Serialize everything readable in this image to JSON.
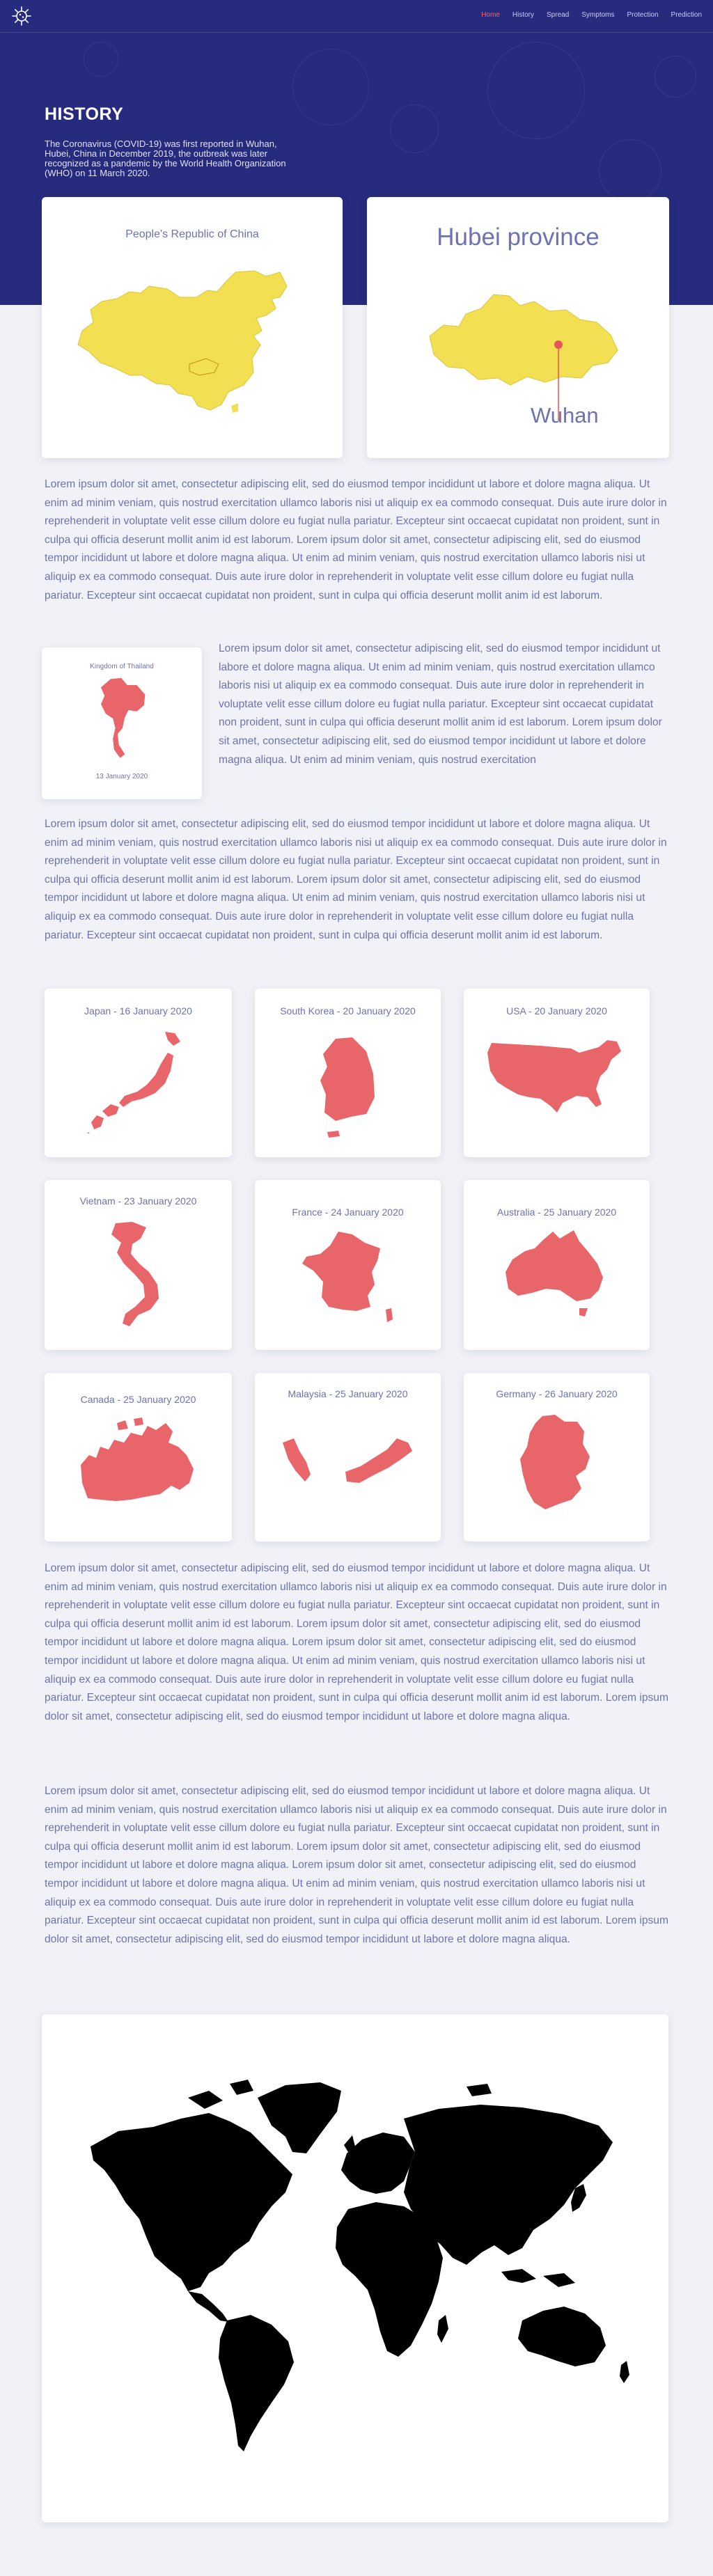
{
  "nav": {
    "logo_icon": "virus-icon",
    "items": [
      "Home",
      "History",
      "Spread",
      "Symptoms",
      "Protection",
      "Prediction"
    ],
    "active": "Home",
    "active_color": "#ff5d6c"
  },
  "hero": {
    "title": "HISTORY",
    "text": "The Coronavirus (COVID-19) was first reported in Wuhan, Hubei, China in December 2019, the outbreak was later recognized as a pandemic by the World Health Organization (WHO) on 11 March 2020.",
    "bg_color": "#262b7d"
  },
  "china_card": {
    "title": "People's Republic of China",
    "map_color": "#f2e052"
  },
  "hubei_card": {
    "title": "Hubei province",
    "city_label": "Wuhan",
    "marker_color": "#e8545a"
  },
  "thailand_card": {
    "title": "Kingdom of Thailand",
    "date": "13 January 2020",
    "map_color": "#e8656a"
  },
  "paragraphs": {
    "p1": "Lorem ipsum dolor sit amet, consectetur adipiscing elit, sed do eiusmod tempor incididunt ut labore et dolore magna aliqua. Ut enim ad minim veniam, quis nostrud exercitation ullamco laboris nisi ut aliquip ex ea commodo consequat. Duis aute irure dolor in reprehenderit in voluptate velit esse cillum dolore eu fugiat nulla pariatur. Excepteur sint occaecat cupidatat non proident, sunt in culpa qui officia deserunt mollit anim id est laborum. Lorem ipsum dolor sit amet, consectetur adipiscing elit, sed do eiusmod tempor incididunt ut labore et dolore magna aliqua. Ut enim ad minim veniam, quis nostrud exercitation ullamco laboris nisi ut aliquip ex ea commodo consequat. Duis aute irure dolor in reprehenderit in voluptate velit esse cillum dolore eu fugiat nulla pariatur. Excepteur sint occaecat cupidatat non proident, sunt in culpa qui officia deserunt mollit anim id est laborum.",
    "p2": "Lorem ipsum dolor sit amet, consectetur adipiscing elit, sed do eiusmod tempor incididunt ut labore et dolore magna aliqua. Ut enim ad minim veniam, quis nostrud exercitation ullamco laboris nisi ut aliquip ex ea commodo consequat. Duis aute irure dolor in reprehenderit in voluptate velit esse cillum dolore eu fugiat nulla pariatur. Excepteur sint occaecat cupidatat non proident, sunt in culpa qui officia deserunt mollit anim id est laborum. Lorem ipsum dolor sit amet, consectetur adipiscing elit, sed do eiusmod tempor incididunt ut labore et dolore magna aliqua. Ut enim ad minim veniam, quis nostrud exercitation",
    "p3": "Lorem ipsum dolor sit amet, consectetur adipiscing elit, sed do eiusmod tempor incididunt ut labore et dolore magna aliqua. Ut enim ad minim veniam, quis nostrud exercitation ullamco laboris nisi ut aliquip ex ea commodo consequat. Duis aute irure dolor in reprehenderit in voluptate velit esse cillum dolore eu fugiat nulla pariatur. Excepteur sint occaecat cupidatat non proident, sunt in culpa qui officia deserunt mollit anim id est laborum. Lorem ipsum dolor sit amet, consectetur adipiscing elit, sed do eiusmod tempor incididunt ut labore et dolore magna aliqua. Ut enim ad minim veniam, quis nostrud exercitation ullamco laboris nisi ut aliquip ex ea commodo consequat. Duis aute irure dolor in reprehenderit in voluptate velit esse cillum dolore eu fugiat nulla pariatur. Excepteur sint occaecat cupidatat non proident, sunt in culpa qui officia deserunt mollit anim id est laborum.",
    "p4": "Lorem ipsum dolor sit amet, consectetur adipiscing elit, sed do eiusmod tempor incididunt ut labore et dolore magna aliqua. Ut enim ad minim veniam, quis nostrud exercitation ullamco laboris nisi ut aliquip ex ea commodo consequat. Duis aute irure dolor in reprehenderit in voluptate velit esse cillum dolore eu fugiat nulla pariatur. Excepteur sint occaecat cupidatat non proident, sunt in culpa qui officia deserunt mollit anim id est laborum. Lorem ipsum dolor sit amet, consectetur adipiscing elit, sed do eiusmod tempor incididunt ut labore et dolore magna aliqua. Lorem ipsum dolor sit amet, consectetur adipiscing elit, sed do eiusmod tempor incididunt ut labore et dolore magna aliqua. Ut enim ad minim veniam, quis nostrud exercitation ullamco laboris nisi ut aliquip ex ea commodo consequat. Duis aute irure dolor in reprehenderit in voluptate velit esse cillum dolore eu fugiat nulla pariatur. Excepteur sint occaecat cupidatat non proident, sunt in culpa qui officia deserunt mollit anim id est laborum. Lorem ipsum dolor sit amet, consectetur adipiscing elit, sed do eiusmod tempor incididunt ut labore et dolore magna aliqua.",
    "p5": "Lorem ipsum dolor sit amet, consectetur adipiscing elit, sed do eiusmod tempor incididunt ut labore et dolore magna aliqua. Ut enim ad minim veniam, quis nostrud exercitation ullamco laboris nisi ut aliquip ex ea commodo consequat. Duis aute irure dolor in reprehenderit in voluptate velit esse cillum dolore eu fugiat nulla pariatur. Excepteur sint occaecat cupidatat non proident, sunt in culpa qui officia deserunt mollit anim id est laborum. Lorem ipsum dolor sit amet, consectetur adipiscing elit, sed do eiusmod tempor incididunt ut labore et dolore magna aliqua. Lorem ipsum dolor sit amet, consectetur adipiscing elit, sed do eiusmod tempor incididunt ut labore et dolore magna aliqua. Ut enim ad minim veniam, quis nostrud exercitation ullamco laboris nisi ut aliquip ex ea commodo consequat. Duis aute irure dolor in reprehenderit in voluptate velit esse cillum dolore eu fugiat nulla pariatur. Excepteur sint occaecat cupidatat non proident, sunt in culpa qui officia deserunt mollit anim id est laborum. Lorem ipsum dolor sit amet, consectetur adipiscing elit, sed do eiusmod tempor incididunt ut labore et dolore magna aliqua."
  },
  "countries": [
    {
      "label": "Japan - 16 January 2020",
      "icon": "japan-map-icon"
    },
    {
      "label": "South Korea - 20 January 2020",
      "icon": "south-korea-map-icon"
    },
    {
      "label": "USA - 20 January 2020",
      "icon": "usa-map-icon"
    },
    {
      "label": "Vietnam - 23 January 2020",
      "icon": "vietnam-map-icon"
    },
    {
      "label": "France - 24 January 2020",
      "icon": "france-map-icon"
    },
    {
      "label": "Australia - 25 January 2020",
      "icon": "australia-map-icon"
    },
    {
      "label": "Canada - 25 January 2020",
      "icon": "canada-map-icon"
    },
    {
      "label": "Malaysia - 25 January 2020",
      "icon": "malaysia-map-icon"
    },
    {
      "label": "Germany - 26 January 2020",
      "icon": "germany-map-icon"
    }
  ],
  "country_map_color": "#e8656a",
  "world_card": {
    "icon": "world-map-icon",
    "map_color": "#000000"
  }
}
